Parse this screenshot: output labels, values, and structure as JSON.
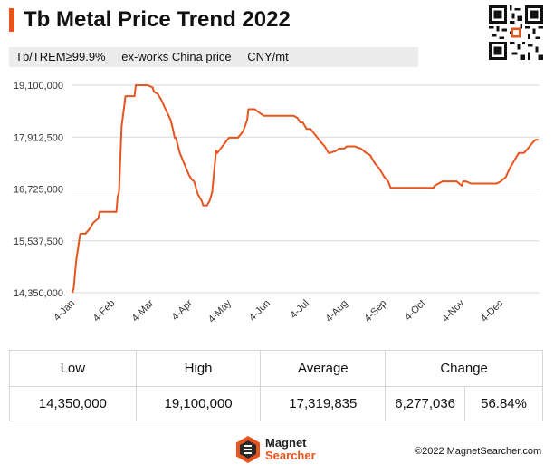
{
  "header": {
    "title": "Tb Metal  Price Trend 2022",
    "subtitle_items": [
      "Tb/TREM≥99.9%",
      "ex-works China price",
      "CNY/mt"
    ]
  },
  "colors": {
    "accent": "#e8541e",
    "grid": "#d9d9d9",
    "text": "#333333"
  },
  "chart_data": {
    "type": "line",
    "title": "",
    "xlabel": "",
    "ylabel": "",
    "x_ticks": [
      "4-Jan",
      "4-Feb",
      "4-Mar",
      "4-Apr",
      "4-May",
      "4-Jun",
      "4-Jul",
      "4-Aug",
      "4-Sep",
      "4-Oct",
      "4-Nov",
      "4-Dec"
    ],
    "y_ticks": [
      "14,350,000",
      "15,537,500",
      "16,725,000",
      "17,912,500",
      "19,100,000"
    ],
    "ylim": [
      14350000,
      19100000
    ],
    "grid": "horizontal",
    "series": [
      {
        "name": "",
        "color": "#e8541e",
        "x": [
          "2022-01-04",
          "2022-01-05",
          "2022-01-06",
          "2022-01-07",
          "2022-01-10",
          "2022-01-14",
          "2022-01-17",
          "2022-01-20",
          "2022-01-24",
          "2022-01-25",
          "2022-02-07",
          "2022-02-08",
          "2022-02-09",
          "2022-02-11",
          "2022-02-14",
          "2022-02-21",
          "2022-02-22",
          "2022-03-01",
          "2022-03-03",
          "2022-03-07",
          "2022-03-08",
          "2022-03-11",
          "2022-03-14",
          "2022-03-17",
          "2022-03-21",
          "2022-03-23",
          "2022-03-24",
          "2022-03-25",
          "2022-03-28",
          "2022-04-04",
          "2022-04-06",
          "2022-04-08",
          "2022-04-11",
          "2022-04-14",
          "2022-04-15",
          "2022-04-18",
          "2022-04-20",
          "2022-04-22",
          "2022-04-25",
          "2022-04-26",
          "2022-05-05",
          "2022-05-09",
          "2022-05-12",
          "2022-05-16",
          "2022-05-19",
          "2022-05-20",
          "2022-05-23",
          "2022-05-25",
          "2022-05-27",
          "2022-06-01",
          "2022-06-24",
          "2022-06-27",
          "2022-06-29",
          "2022-07-01",
          "2022-07-04",
          "2022-07-07",
          "2022-07-11",
          "2022-07-15",
          "2022-07-18",
          "2022-07-21",
          "2022-07-22",
          "2022-07-27",
          "2022-07-29",
          "2022-08-02",
          "2022-08-04",
          "2022-08-10",
          "2022-08-15",
          "2022-08-17",
          "2022-08-19",
          "2022-08-22",
          "2022-08-24",
          "2022-08-26",
          "2022-08-29",
          "2022-08-31",
          "2022-09-02",
          "2022-09-05",
          "2022-09-07",
          "2022-09-28",
          "2022-10-10",
          "2022-10-11",
          "2022-10-14",
          "2022-10-17",
          "2022-10-28",
          "2022-11-01",
          "2022-11-02",
          "2022-11-04",
          "2022-11-08",
          "2022-11-28",
          "2022-12-01",
          "2022-12-05",
          "2022-12-08",
          "2022-12-12",
          "2022-12-15",
          "2022-12-19",
          "2022-12-22",
          "2022-12-26",
          "2022-12-28",
          "2022-12-30"
        ],
        "values": [
          14350000,
          14450000,
          14800000,
          15100000,
          15700000,
          15700000,
          15800000,
          15950000,
          16050000,
          16200000,
          16200000,
          16550000,
          16650000,
          18150000,
          18850000,
          18850000,
          19100000,
          19100000,
          19100000,
          19050000,
          18950000,
          18900000,
          18750000,
          18550000,
          18300000,
          18050000,
          17900000,
          17900000,
          17550000,
          17050000,
          16950000,
          16900000,
          16600000,
          16450000,
          16350000,
          16350000,
          16450000,
          16650000,
          17600000,
          17550000,
          17900000,
          17900000,
          17900000,
          18050000,
          18300000,
          18550000,
          18550000,
          18550000,
          18500000,
          18400000,
          18400000,
          18350000,
          18250000,
          18250000,
          18100000,
          18100000,
          17950000,
          17800000,
          17700000,
          17550000,
          17550000,
          17600000,
          17650000,
          17650000,
          17700000,
          17700000,
          17650000,
          17600000,
          17550000,
          17500000,
          17400000,
          17300000,
          17200000,
          17100000,
          17000000,
          16900000,
          16750000,
          16750000,
          16750000,
          16800000,
          16850000,
          16900000,
          16900000,
          16800000,
          16900000,
          16900000,
          16850000,
          16850000,
          16900000,
          17000000,
          17200000,
          17400000,
          17550000,
          17550000,
          17650000,
          17800000,
          17850000,
          17850000
        ]
      }
    ]
  },
  "stats": {
    "headers": [
      "Low",
      "High",
      "Average",
      "Change"
    ],
    "values": [
      "14,350,000",
      "19,100,000",
      "17,319,835",
      "6,277,036",
      "56.84%"
    ]
  },
  "footer": {
    "logo_line1": "Magnet",
    "logo_line2": "Searcher",
    "copyright": "©2022 MagnetSearcher.com"
  }
}
